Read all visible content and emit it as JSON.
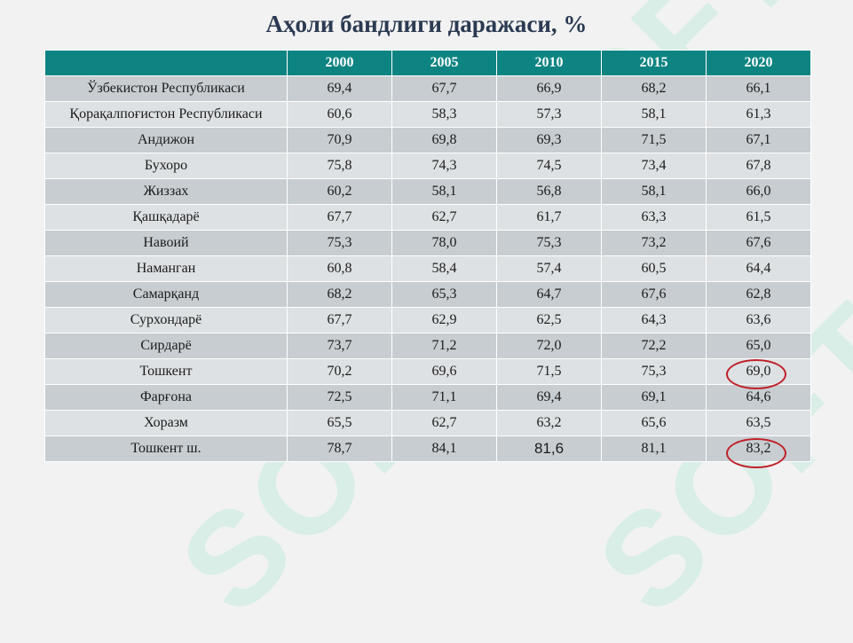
{
  "title": "Аҳоли бандлиги даражаси, %",
  "table": {
    "corner": "",
    "years": [
      "2000",
      "2005",
      "2010",
      "2015",
      "2020"
    ],
    "rows": [
      {
        "region": "Ўзбекистон Республикаси",
        "values": [
          "69,4",
          "67,7",
          "66,9",
          "68,2",
          "66,1"
        ]
      },
      {
        "region": "Қорақалпоғистон Республикаси",
        "values": [
          "60,6",
          "58,3",
          "57,3",
          "58,1",
          "61,3"
        ]
      },
      {
        "region": "Андижон",
        "values": [
          "70,9",
          "69,8",
          "69,3",
          "71,5",
          "67,1"
        ]
      },
      {
        "region": "Бухоро",
        "values": [
          "75,8",
          "74,3",
          "74,5",
          "73,4",
          "67,8"
        ]
      },
      {
        "region": "Жиззах",
        "values": [
          "60,2",
          "58,1",
          "56,8",
          "58,1",
          "66,0"
        ]
      },
      {
        "region": "Қашқадарё",
        "values": [
          "67,7",
          "62,7",
          "61,7",
          "63,3",
          "61,5"
        ]
      },
      {
        "region": "Навоий",
        "values": [
          "75,3",
          "78,0",
          "75,3",
          "73,2",
          "67,6"
        ]
      },
      {
        "region": "Наманган",
        "values": [
          "60,8",
          "58,4",
          "57,4",
          "60,5",
          "64,4"
        ]
      },
      {
        "region": "Самарқанд",
        "values": [
          "68,2",
          "65,3",
          "64,7",
          "67,6",
          "62,8"
        ]
      },
      {
        "region": "Сурхондарё",
        "values": [
          "67,7",
          "62,9",
          "62,5",
          "64,3",
          "63,6"
        ]
      },
      {
        "region": "Сирдарё",
        "values": [
          "73,7",
          "71,2",
          "72,0",
          "72,2",
          "65,0"
        ]
      },
      {
        "region": "Тошкент",
        "values": [
          "70,2",
          "69,6",
          "71,5",
          "75,3",
          "69,0"
        ]
      },
      {
        "region": "Фарғона",
        "values": [
          "72,5",
          "71,1",
          "69,4",
          "69,1",
          "64,6"
        ]
      },
      {
        "region": "Хоразм",
        "values": [
          "65,5",
          "62,7",
          "63,2",
          "65,6",
          "63,5"
        ]
      },
      {
        "region": "Тошкент ш.",
        "values": [
          "78,7",
          "84,1",
          "81,6",
          "81,1",
          "83,2"
        ]
      }
    ]
  },
  "watermark_text": "SOFT",
  "highlight_color": "#c0202a",
  "header_color": "#0e8482"
}
